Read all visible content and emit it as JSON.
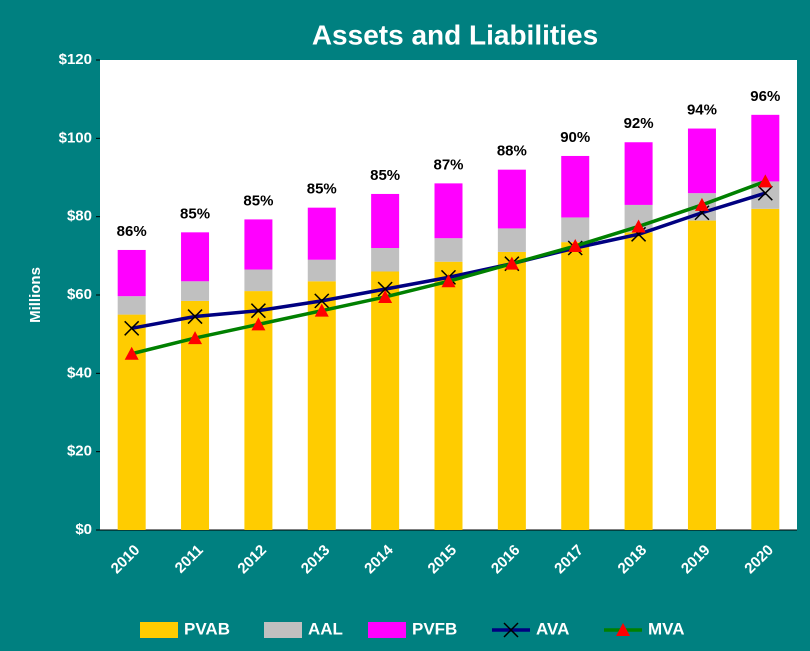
{
  "chart_data": {
    "type": "stacked_bar_line",
    "title": "Assets and Liabilities",
    "y_label": "Millions",
    "categories": [
      "2010",
      "2011",
      "2012",
      "2013",
      "2014",
      "2015",
      "2016",
      "2017",
      "2018",
      "2019",
      "2020"
    ],
    "series": [
      {
        "name": "PVAB",
        "kind": "bar",
        "color": "#FFCC00",
        "values": [
          55,
          58.5,
          61,
          63.5,
          66,
          68.5,
          71,
          73.5,
          76,
          79,
          82
        ]
      },
      {
        "name": "AAL",
        "kind": "bar",
        "color": "#C0C0C0",
        "values": [
          4.7,
          5,
          5.5,
          5.5,
          6,
          6,
          6,
          6.3,
          7,
          7,
          7
        ]
      },
      {
        "name": "PVFB",
        "kind": "bar",
        "color": "#FF00FF",
        "values": [
          11.8,
          12.5,
          12.8,
          13.3,
          13.8,
          14,
          15,
          15.7,
          16,
          16.5,
          17
        ]
      },
      {
        "name": "AVA",
        "kind": "line",
        "color": "#000080",
        "marker": "x",
        "marker_color": "#000000",
        "values": [
          51.5,
          54.5,
          56,
          58.5,
          61.5,
          64.5,
          68,
          72,
          75.5,
          81,
          86
        ]
      },
      {
        "name": "MVA",
        "kind": "line",
        "color": "#008000",
        "marker": "triangle",
        "marker_color": "#FF0000",
        "values": [
          45,
          49,
          52.5,
          56,
          59.5,
          63.5,
          68,
          72.5,
          77.5,
          83,
          89
        ]
      }
    ],
    "funded_ratios": [
      86,
      85,
      85,
      85,
      85,
      87,
      88,
      90,
      92,
      94,
      96
    ],
    "funded_ratio_labels": [
      "86%",
      "85%",
      "85%",
      "85%",
      "85%",
      "87%",
      "88%",
      "90%",
      "92%",
      "94%",
      "96%"
    ],
    "ylim": [
      0,
      120
    ],
    "yticks": [
      {
        "value": 0,
        "label": "$0"
      },
      {
        "value": 20,
        "label": "$20"
      },
      {
        "value": 40,
        "label": "$40"
      },
      {
        "value": 60,
        "label": "$60"
      },
      {
        "value": 80,
        "label": "$80"
      },
      {
        "value": 100,
        "label": "$100"
      },
      {
        "value": 120,
        "label": "$120"
      }
    ],
    "grid": false,
    "legend": "bottom"
  }
}
